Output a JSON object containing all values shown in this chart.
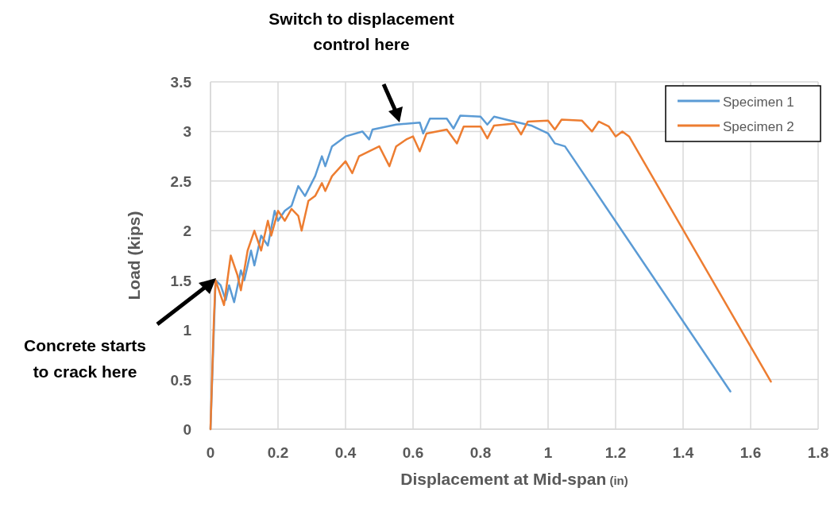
{
  "chart_data": {
    "type": "line",
    "xlabel": "Displacement at Mid-span (in)",
    "ylabel": "Load (kips)",
    "xlim": [
      0,
      1.8
    ],
    "xticks": [
      0,
      0.2,
      0.4,
      0.6,
      0.8,
      1,
      1.2,
      1.4,
      1.6,
      1.8
    ],
    "ylim": [
      0,
      3.5
    ],
    "yticks": [
      0,
      0.5,
      1,
      1.5,
      2,
      2.5,
      3,
      3.5
    ],
    "grid": true,
    "legend": "top right",
    "annotations": [
      "Switch to displacement control here",
      "Concrete starts to crack here"
    ],
    "series": [
      {
        "name": "Specimen 1",
        "color": "#5b9bd5",
        "x": [
          0,
          0.01,
          0.015,
          0.03,
          0.045,
          0.055,
          0.07,
          0.09,
          0.1,
          0.12,
          0.13,
          0.15,
          0.17,
          0.19,
          0.2,
          0.22,
          0.24,
          0.26,
          0.28,
          0.31,
          0.33,
          0.34,
          0.36,
          0.4,
          0.45,
          0.47,
          0.48,
          0.55,
          0.62,
          0.63,
          0.65,
          0.7,
          0.72,
          0.74,
          0.8,
          0.82,
          0.84,
          0.9,
          0.95,
          1.0,
          1.02,
          1.05,
          1.08,
          1.54
        ],
        "values": [
          0,
          1.0,
          1.5,
          1.45,
          1.3,
          1.45,
          1.28,
          1.6,
          1.5,
          1.8,
          1.65,
          1.95,
          1.85,
          2.2,
          2.1,
          2.2,
          2.25,
          2.45,
          2.35,
          2.55,
          2.75,
          2.65,
          2.85,
          2.95,
          3.0,
          2.92,
          3.02,
          3.07,
          3.09,
          2.98,
          3.13,
          3.13,
          3.03,
          3.16,
          3.15,
          3.07,
          3.15,
          3.1,
          3.06,
          2.98,
          2.88,
          2.85,
          2.7,
          0.38
        ]
      },
      {
        "name": "Specimen 2",
        "color": "#ed7d31",
        "x": [
          0,
          0.01,
          0.015,
          0.03,
          0.04,
          0.06,
          0.08,
          0.09,
          0.11,
          0.13,
          0.15,
          0.17,
          0.18,
          0.2,
          0.22,
          0.24,
          0.26,
          0.27,
          0.29,
          0.31,
          0.33,
          0.34,
          0.36,
          0.4,
          0.42,
          0.44,
          0.5,
          0.53,
          0.55,
          0.58,
          0.6,
          0.62,
          0.64,
          0.7,
          0.73,
          0.75,
          0.8,
          0.82,
          0.84,
          0.9,
          0.92,
          0.94,
          1.0,
          1.02,
          1.04,
          1.1,
          1.13,
          1.15,
          1.18,
          1.2,
          1.22,
          1.24,
          1.66
        ],
        "values": [
          0,
          1.1,
          1.5,
          1.35,
          1.25,
          1.75,
          1.55,
          1.4,
          1.8,
          2.0,
          1.8,
          2.1,
          1.95,
          2.2,
          2.1,
          2.22,
          2.15,
          2.0,
          2.3,
          2.35,
          2.48,
          2.4,
          2.55,
          2.7,
          2.58,
          2.75,
          2.85,
          2.65,
          2.85,
          2.92,
          2.95,
          2.8,
          2.98,
          3.02,
          2.88,
          3.05,
          3.05,
          2.93,
          3.06,
          3.08,
          2.97,
          3.1,
          3.11,
          3.02,
          3.12,
          3.11,
          3.0,
          3.1,
          3.05,
          2.95,
          3.0,
          2.95,
          0.48
        ]
      }
    ]
  }
}
